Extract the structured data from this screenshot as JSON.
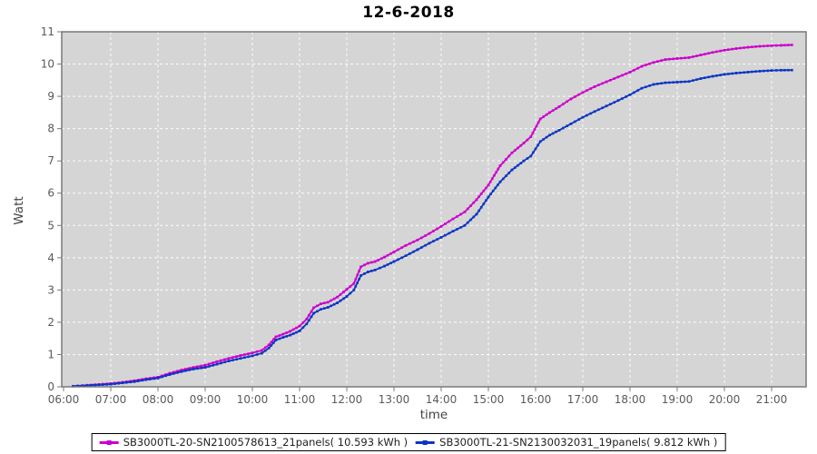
{
  "chart_data": {
    "type": "line",
    "title": "12-6-2018",
    "xlabel": "time",
    "ylabel": "Watt",
    "x_ticks": [
      "06:00",
      "07:00",
      "08:00",
      "09:00",
      "10:00",
      "11:00",
      "12:00",
      "13:00",
      "14:00",
      "15:00",
      "16:00",
      "17:00",
      "18:00",
      "19:00",
      "20:00",
      "21:00"
    ],
    "y_ticks": [
      0,
      1,
      2,
      3,
      4,
      5,
      6,
      7,
      8,
      9,
      10,
      11
    ],
    "ylim": [
      0,
      11
    ],
    "xlim_hours": [
      5.95,
      21.73
    ],
    "grid": "white dashed on gray background",
    "legend_position": "bottom",
    "plot_bg_color": "#d5d5d5",
    "grid_color": "#ffffff",
    "border_color": "#787878",
    "tick_label_color": "#5a5a5a",
    "x_hours": [
      6.2,
      6.5,
      7.0,
      7.25,
      7.5,
      7.75,
      8.0,
      8.25,
      8.5,
      8.75,
      9.0,
      9.25,
      9.5,
      9.75,
      10.0,
      10.2,
      10.35,
      10.5,
      10.65,
      10.8,
      11.0,
      11.15,
      11.3,
      11.45,
      11.6,
      11.8,
      12.0,
      12.15,
      12.3,
      12.45,
      12.6,
      12.8,
      13.0,
      13.25,
      13.5,
      13.75,
      14.0,
      14.25,
      14.5,
      14.75,
      15.0,
      15.25,
      15.5,
      15.75,
      15.9,
      16.1,
      16.3,
      16.5,
      16.75,
      17.0,
      17.25,
      17.5,
      17.75,
      18.0,
      18.25,
      18.5,
      18.75,
      19.0,
      19.25,
      19.5,
      19.75,
      20.0,
      20.25,
      20.5,
      20.75,
      21.0,
      21.2,
      21.43
    ],
    "series": [
      {
        "name": "SB3000TL-20-SN2100578613_21panels( 10.593 kWh )",
        "total_kwh": "10.593",
        "color": "#cc00cc",
        "values": [
          0.02,
          0.05,
          0.1,
          0.14,
          0.19,
          0.25,
          0.3,
          0.42,
          0.52,
          0.6,
          0.67,
          0.78,
          0.88,
          0.97,
          1.05,
          1.13,
          1.3,
          1.55,
          1.63,
          1.72,
          1.88,
          2.1,
          2.45,
          2.57,
          2.62,
          2.78,
          3.02,
          3.2,
          3.72,
          3.83,
          3.88,
          4.02,
          4.18,
          4.38,
          4.55,
          4.75,
          4.97,
          5.2,
          5.42,
          5.8,
          6.25,
          6.85,
          7.25,
          7.55,
          7.75,
          8.3,
          8.5,
          8.68,
          8.92,
          9.12,
          9.3,
          9.45,
          9.6,
          9.75,
          9.93,
          10.05,
          10.14,
          10.17,
          10.2,
          10.28,
          10.36,
          10.43,
          10.48,
          10.52,
          10.55,
          10.57,
          10.58,
          10.593
        ]
      },
      {
        "name": "SB3000TL-21-SN2130032031_19panels( 9.812 kWh )",
        "total_kwh": "9.812",
        "color": "#0d35c4",
        "values": [
          0.02,
          0.04,
          0.08,
          0.12,
          0.16,
          0.22,
          0.27,
          0.38,
          0.47,
          0.55,
          0.6,
          0.7,
          0.8,
          0.88,
          0.96,
          1.04,
          1.2,
          1.45,
          1.53,
          1.6,
          1.73,
          1.95,
          2.28,
          2.4,
          2.46,
          2.6,
          2.8,
          3.0,
          3.45,
          3.56,
          3.62,
          3.74,
          3.88,
          4.06,
          4.25,
          4.45,
          4.63,
          4.82,
          5.0,
          5.35,
          5.88,
          6.35,
          6.72,
          7.0,
          7.15,
          7.6,
          7.8,
          7.95,
          8.15,
          8.35,
          8.53,
          8.7,
          8.87,
          9.05,
          9.25,
          9.37,
          9.42,
          9.44,
          9.46,
          9.55,
          9.62,
          9.68,
          9.72,
          9.75,
          9.78,
          9.8,
          9.81,
          9.812
        ]
      }
    ]
  }
}
